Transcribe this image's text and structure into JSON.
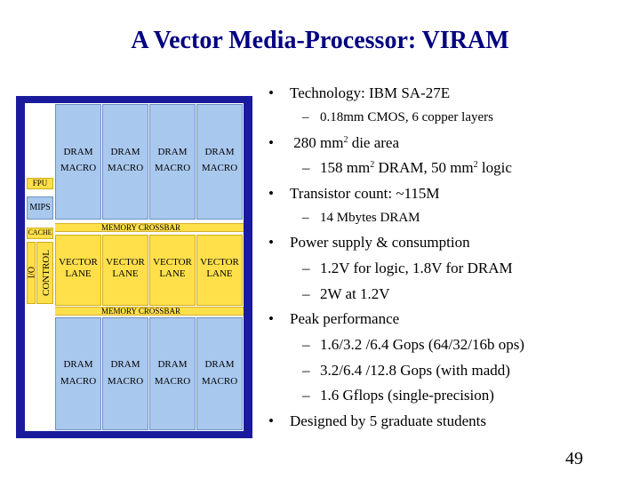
{
  "slide": {
    "title": "A Vector Media-Processor: VIRAM",
    "page_number": "49"
  },
  "diagram": {
    "dram_label_line1": "DRAM",
    "dram_label_line2": "MACRO",
    "memory_crossbar": "MEMORY CROSSBAR",
    "vector_lane_line1": "VECTOR",
    "vector_lane_line2": "LANE",
    "fpu": "FPU",
    "mips": "MIPS",
    "cache": "CACHE",
    "io": "I/O",
    "control": "CONTROL"
  },
  "bullets": {
    "b1": "Technology: IBM SA-27E",
    "b1_s1": "0.18mm CMOS, 6 copper layers",
    "b2_pre": "280 mm",
    "b2_sup": "2",
    "b2_post": " die area",
    "b2_s1_a": "158 mm",
    "b2_s1_sup1": "2",
    "b2_s1_b": " DRAM, 50 mm",
    "b2_s1_sup2": "2",
    "b2_s1_c": " logic",
    "b3": "Transistor count: ~115M",
    "b3_s1": "14 Mbytes DRAM",
    "b4": "Power supply & consumption",
    "b4_s1": "1.2V for logic, 1.8V for DRAM",
    "b4_s2": "2W at 1.2V",
    "b5": "Peak performance",
    "b5_s1": "1.6/3.2 /6.4 Gops  (64/32/16b ops)",
    "b5_s2": "3.2/6.4 /12.8 Gops  (with madd)",
    "b5_s3": "1.6 Gflops (single-precision)",
    "b6": "Designed by 5 graduate students",
    "bullet_char": "•",
    "dash_char": "–"
  }
}
